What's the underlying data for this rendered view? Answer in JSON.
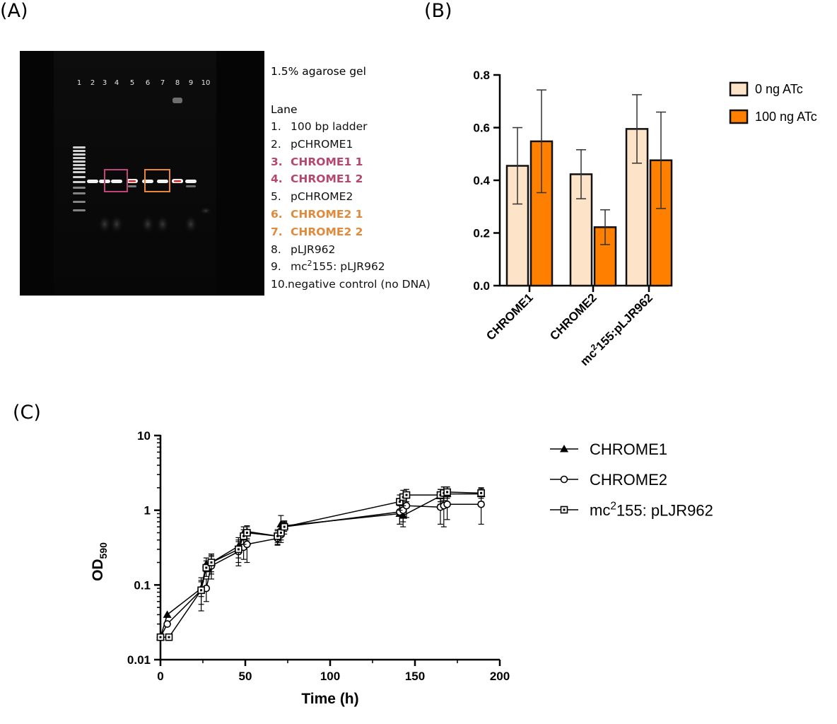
{
  "panels": {
    "a": "(A)",
    "b": "(B)",
    "c": "(C)"
  },
  "gel": {
    "lane_numbers": [
      "1",
      "2",
      "3",
      "4",
      "5",
      "6",
      "7",
      "8",
      "9",
      "10"
    ],
    "legend": {
      "title": "1.5% agarose gel",
      "header": "Lane",
      "items": [
        {
          "num": "1.",
          "text": "100 bp ladder",
          "color": "#111111"
        },
        {
          "num": "2.",
          "text": "pCHROME1",
          "color": "#111111"
        },
        {
          "num": "3.",
          "text": "CHROME1 1",
          "color": "#b5476f"
        },
        {
          "num": "4.",
          "text": "CHROME1 2",
          "color": "#b5476f"
        },
        {
          "num": "5.",
          "text": "pCHROME2",
          "color": "#111111"
        },
        {
          "num": "6.",
          "text": "CHROME2 1",
          "color": "#e08a3c"
        },
        {
          "num": "7.",
          "text": "CHROME2 2",
          "color": "#e08a3c"
        },
        {
          "num": "8.",
          "text": "pLJR962",
          "color": "#111111"
        },
        {
          "num": "9.",
          "text_pre": "mc",
          "text_sup": "2",
          "text_post": "155: pLJR962",
          "color": "#111111"
        },
        {
          "num": "10.",
          "text": "negative control (no DNA)",
          "color": "#111111"
        }
      ]
    },
    "box_colors": {
      "chrome1": "#c0447a",
      "chrome2": "#e8873a"
    }
  },
  "chart_data": [
    {
      "type": "bar",
      "categories": [
        "CHROME1",
        "CHROME2",
        "mc2155:pLJR962"
      ],
      "category_labels": [
        {
          "text": "CHROME1"
        },
        {
          "text": "CHROME2"
        },
        {
          "pre": "mc",
          "sup": "2",
          "post": "155:pLJR962"
        }
      ],
      "series": [
        {
          "name": "0 ng ATc",
          "color": "#fde3c8",
          "values": [
            0.455,
            0.423,
            0.595
          ],
          "errors": [
            0.145,
            0.093,
            0.13
          ]
        },
        {
          "name": "100 ng ATc",
          "color": "#ff8000",
          "values": [
            0.548,
            0.222,
            0.476
          ],
          "errors": [
            0.195,
            0.066,
            0.183
          ]
        }
      ],
      "ylim": [
        0,
        0.8
      ],
      "yticks": [
        "0.0",
        "0.2",
        "0.4",
        "0.6",
        "0.8"
      ],
      "legend_position": "right"
    },
    {
      "type": "line",
      "xlabel": "Time (h)",
      "ylabel": {
        "main": "OD",
        "sub": "590"
      },
      "xlim": [
        0,
        200
      ],
      "xticks": [
        "0",
        "50",
        "100",
        "150",
        "200"
      ],
      "ylim": [
        0.01,
        10
      ],
      "yscale": "log",
      "yticks": [
        "0.01",
        "0.1",
        "1",
        "10"
      ],
      "legend_position": "right",
      "series": [
        {
          "name": "CHROME1",
          "marker": "triangle",
          "points": [
            [
              0,
              0.02
            ],
            [
              4,
              0.04
            ],
            [
              24,
              0.09
            ],
            [
              27,
              0.19
            ],
            [
              30,
              0.2
            ],
            [
              46,
              0.33
            ],
            [
              49,
              0.5
            ],
            [
              51,
              0.52
            ],
            [
              69,
              0.45
            ],
            [
              71,
              0.65
            ],
            [
              73,
              0.62
            ],
            [
              141,
              0.9
            ],
            [
              143,
              0.85
            ],
            [
              165,
              1.55
            ],
            [
              167,
              1.65
            ],
            [
              169,
              1.65
            ],
            [
              189,
              1.65
            ]
          ],
          "err": [
            0,
            0,
            0.02,
            0.04,
            0.06,
            0.1,
            0.1,
            0.1,
            0.1,
            0.2,
            0.08,
            0.25,
            0.25,
            0.35,
            0.4,
            0.4,
            0.35
          ]
        },
        {
          "name": "CHROME2",
          "marker": "circle",
          "points": [
            [
              0,
              0.02
            ],
            [
              4,
              0.03
            ],
            [
              24,
              0.085
            ],
            [
              27,
              0.09
            ],
            [
              30,
              0.18
            ],
            [
              46,
              0.28
            ],
            [
              49,
              0.32
            ],
            [
              51,
              0.35
            ],
            [
              69,
              0.42
            ],
            [
              71,
              0.47
            ],
            [
              73,
              0.6
            ],
            [
              141,
              0.95
            ],
            [
              143,
              1.0
            ],
            [
              145,
              1.15
            ],
            [
              165,
              1.1
            ],
            [
              167,
              1.15
            ],
            [
              169,
              1.2
            ],
            [
              189,
              1.2
            ]
          ],
          "err": [
            0,
            0,
            0.04,
            0.03,
            0.06,
            0.1,
            0.1,
            0.15,
            0.08,
            0.1,
            0.12,
            0.3,
            0.3,
            0.35,
            0.45,
            0.55,
            0.45,
            0.55
          ]
        },
        {
          "name": "mc2155: pLJR962",
          "marker": "square",
          "points": [
            [
              0,
              0.02
            ],
            [
              5,
              0.02
            ],
            [
              24,
              0.085
            ],
            [
              27,
              0.17
            ],
            [
              30,
              0.2
            ],
            [
              46,
              0.3
            ],
            [
              49,
              0.45
            ],
            [
              51,
              0.5
            ],
            [
              69,
              0.45
            ],
            [
              71,
              0.5
            ],
            [
              73,
              0.6
            ],
            [
              141,
              1.3
            ],
            [
              143,
              1.5
            ],
            [
              145,
              1.6
            ],
            [
              165,
              1.6
            ],
            [
              167,
              1.7
            ],
            [
              169,
              1.75
            ],
            [
              189,
              1.7
            ]
          ],
          "err": [
            0,
            0,
            0.03,
            0.04,
            0.05,
            0.1,
            0.1,
            0.1,
            0.08,
            0.1,
            0.08,
            0.3,
            0.35,
            0.3,
            0.3,
            0.35,
            0.3,
            0.25
          ]
        }
      ],
      "legend_labels": [
        {
          "text": "CHROME1"
        },
        {
          "text": "CHROME2"
        },
        {
          "pre": "mc",
          "sup": "2",
          "post": "155: pLJR962"
        }
      ]
    }
  ]
}
